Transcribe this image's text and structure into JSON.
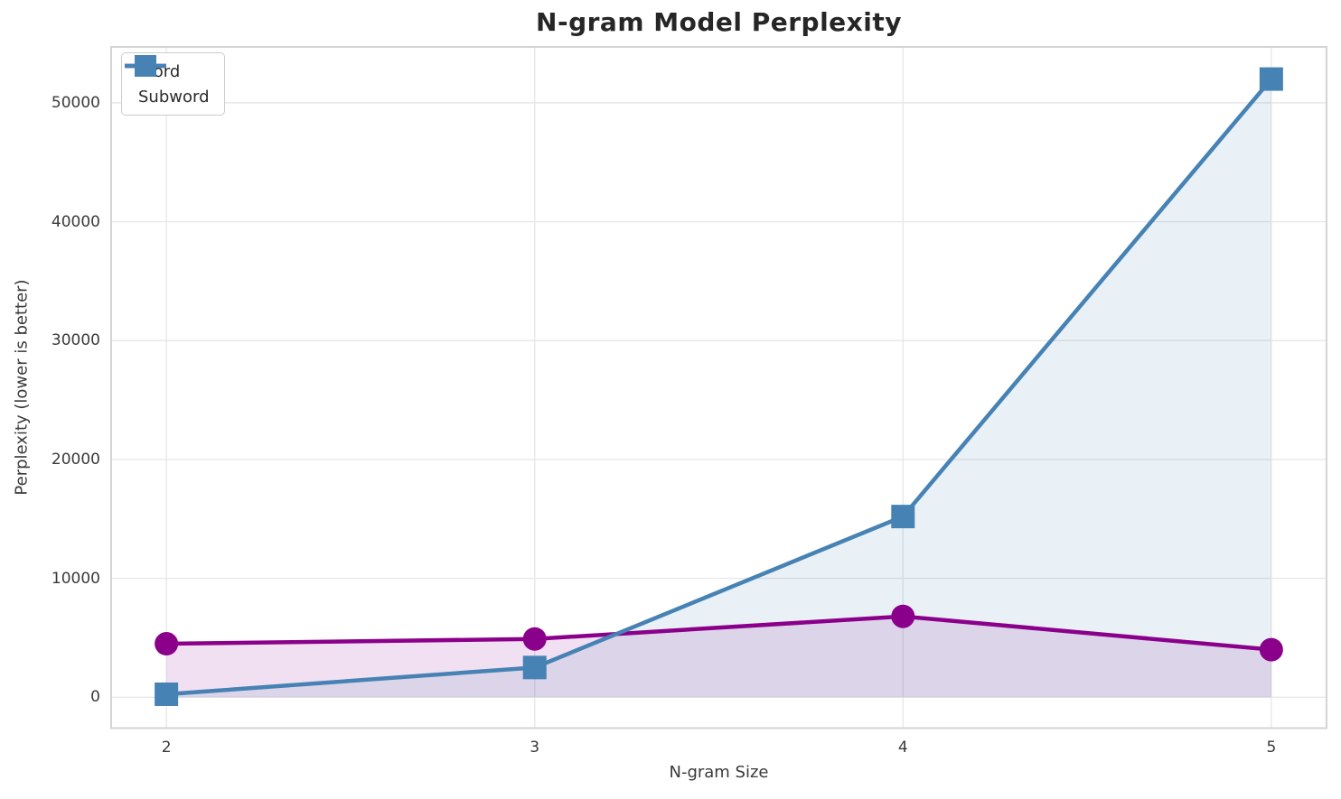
{
  "chart_data": {
    "type": "line",
    "title": "N-gram Model Perplexity",
    "xlabel": "N-gram Size",
    "ylabel": "Perplexity (lower is better)",
    "x": [
      2,
      3,
      4,
      5
    ],
    "series": [
      {
        "name": "Word",
        "values": [
          4500,
          4900,
          6800,
          4000
        ],
        "color": "#8B008B",
        "marker": "circle",
        "fill_alpha": 0.12
      },
      {
        "name": "Subword",
        "values": [
          250,
          2500,
          15200,
          52000
        ],
        "color": "#4682B4",
        "marker": "square",
        "fill_alpha": 0.12
      }
    ],
    "xticks": [
      2,
      3,
      4,
      5
    ],
    "yticks": [
      0,
      10000,
      20000,
      30000,
      40000,
      50000
    ],
    "xlim": [
      1.85,
      5.15
    ],
    "ylim": [
      -2600,
      54700
    ],
    "grid": true,
    "area_fill_baseline": 0,
    "legend_position": "upper left"
  }
}
